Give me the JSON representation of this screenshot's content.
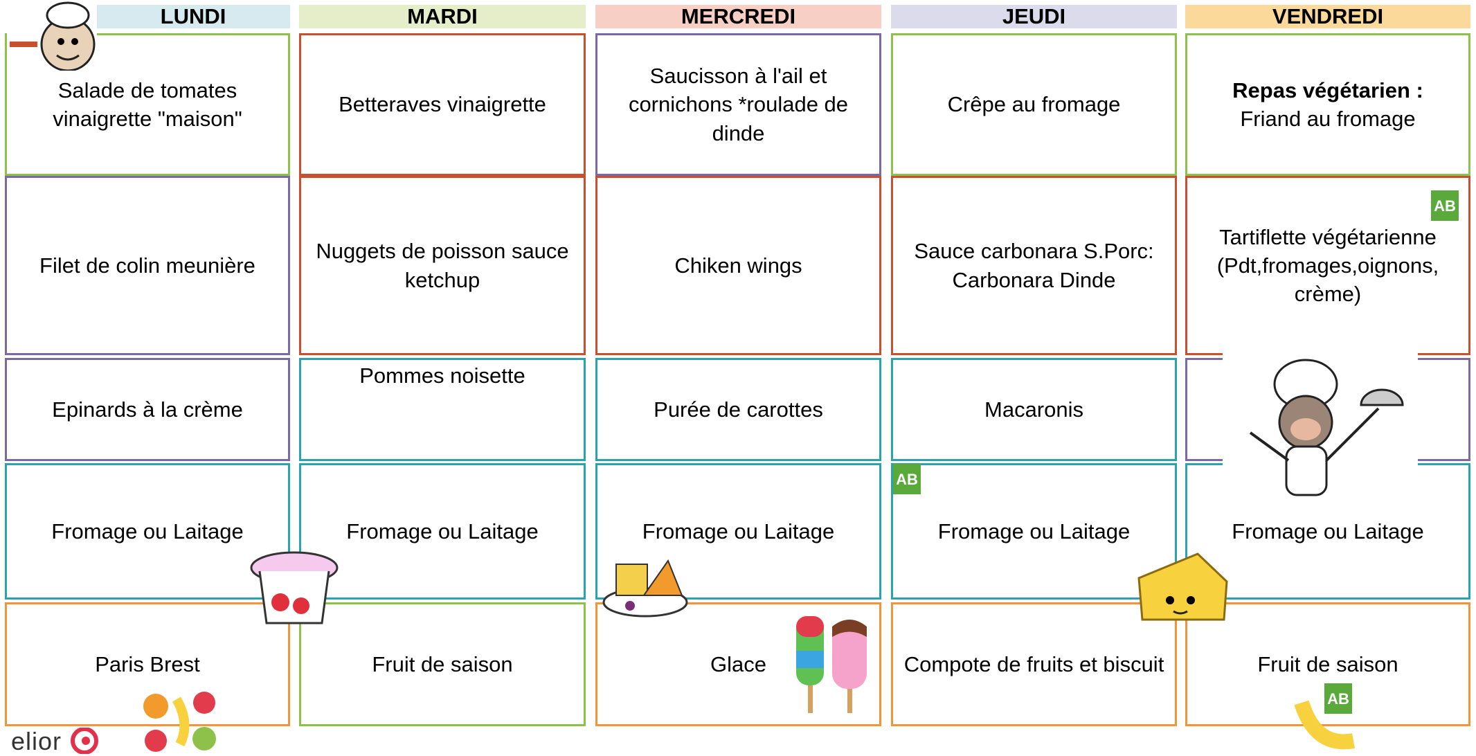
{
  "header": {
    "days": [
      "LUNDI",
      "MARDI",
      "MERCREDI",
      "JEUDI",
      "VENDREDI"
    ]
  },
  "menu": {
    "rows": [
      [
        "Salade de tomates vinaigrette \"maison\"",
        "Betteraves vinaigrette",
        "Saucisson à l'ail et cornichons *roulade de dinde",
        "Crêpe au fromage",
        {
          "bold": "Repas végétarien :",
          "text": "Friand au fromage"
        }
      ],
      [
        "Filet de colin meunière",
        "Nuggets de poisson sauce ketchup",
        "Chiken wings",
        "Sauce carbonara S.Porc: Carbonara Dinde",
        "Tartiflette végétarienne (Pdt,fromages,oignons, crème)"
      ],
      [
        "Epinards à la crème",
        "Pommes noisette",
        "Purée de carottes",
        "Macaronis",
        null
      ],
      [
        "Fromage ou Laitage",
        "Fromage ou Laitage",
        "Fromage ou Laitage",
        "Fromage ou Laitage",
        "Fromage ou Laitage"
      ],
      [
        "Paris Brest",
        "Fruit de saison",
        "Glace",
        "Compote de fruits et biscuit",
        "Fruit de saison"
      ]
    ]
  },
  "footer": {
    "logo": "elior"
  }
}
